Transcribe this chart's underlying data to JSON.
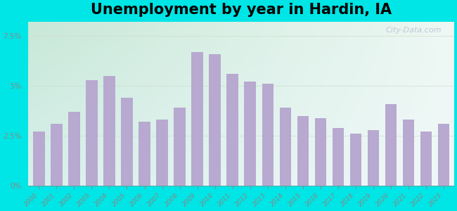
{
  "title": "Unemployment by year in Hardin, IA",
  "years": [
    2000,
    2001,
    2002,
    2003,
    2004,
    2005,
    2006,
    2007,
    2008,
    2009,
    2010,
    2011,
    2012,
    2013,
    2014,
    2015,
    2016,
    2017,
    2018,
    2019,
    2020,
    2021,
    2022,
    2023
  ],
  "values": [
    2.7,
    3.1,
    3.7,
    5.3,
    5.5,
    4.4,
    3.2,
    3.3,
    3.9,
    6.7,
    6.6,
    5.6,
    5.2,
    5.1,
    3.9,
    3.5,
    3.4,
    2.9,
    2.6,
    2.8,
    4.1,
    3.3,
    2.7,
    3.1
  ],
  "bar_color": "#b8a9d0",
  "background_outer": "#00e5e5",
  "bg_top_left": "#c8e8d8",
  "bg_top_right": "#e8f0f0",
  "bg_bottom": "#d8eeee",
  "yticks": [
    0,
    2.5,
    5.0,
    7.5
  ],
  "ylim": [
    0,
    8.2
  ],
  "title_fontsize": 15,
  "tick_color": "#888888",
  "watermark_text": "City-Data.com",
  "grid_color": "#ccddcc"
}
